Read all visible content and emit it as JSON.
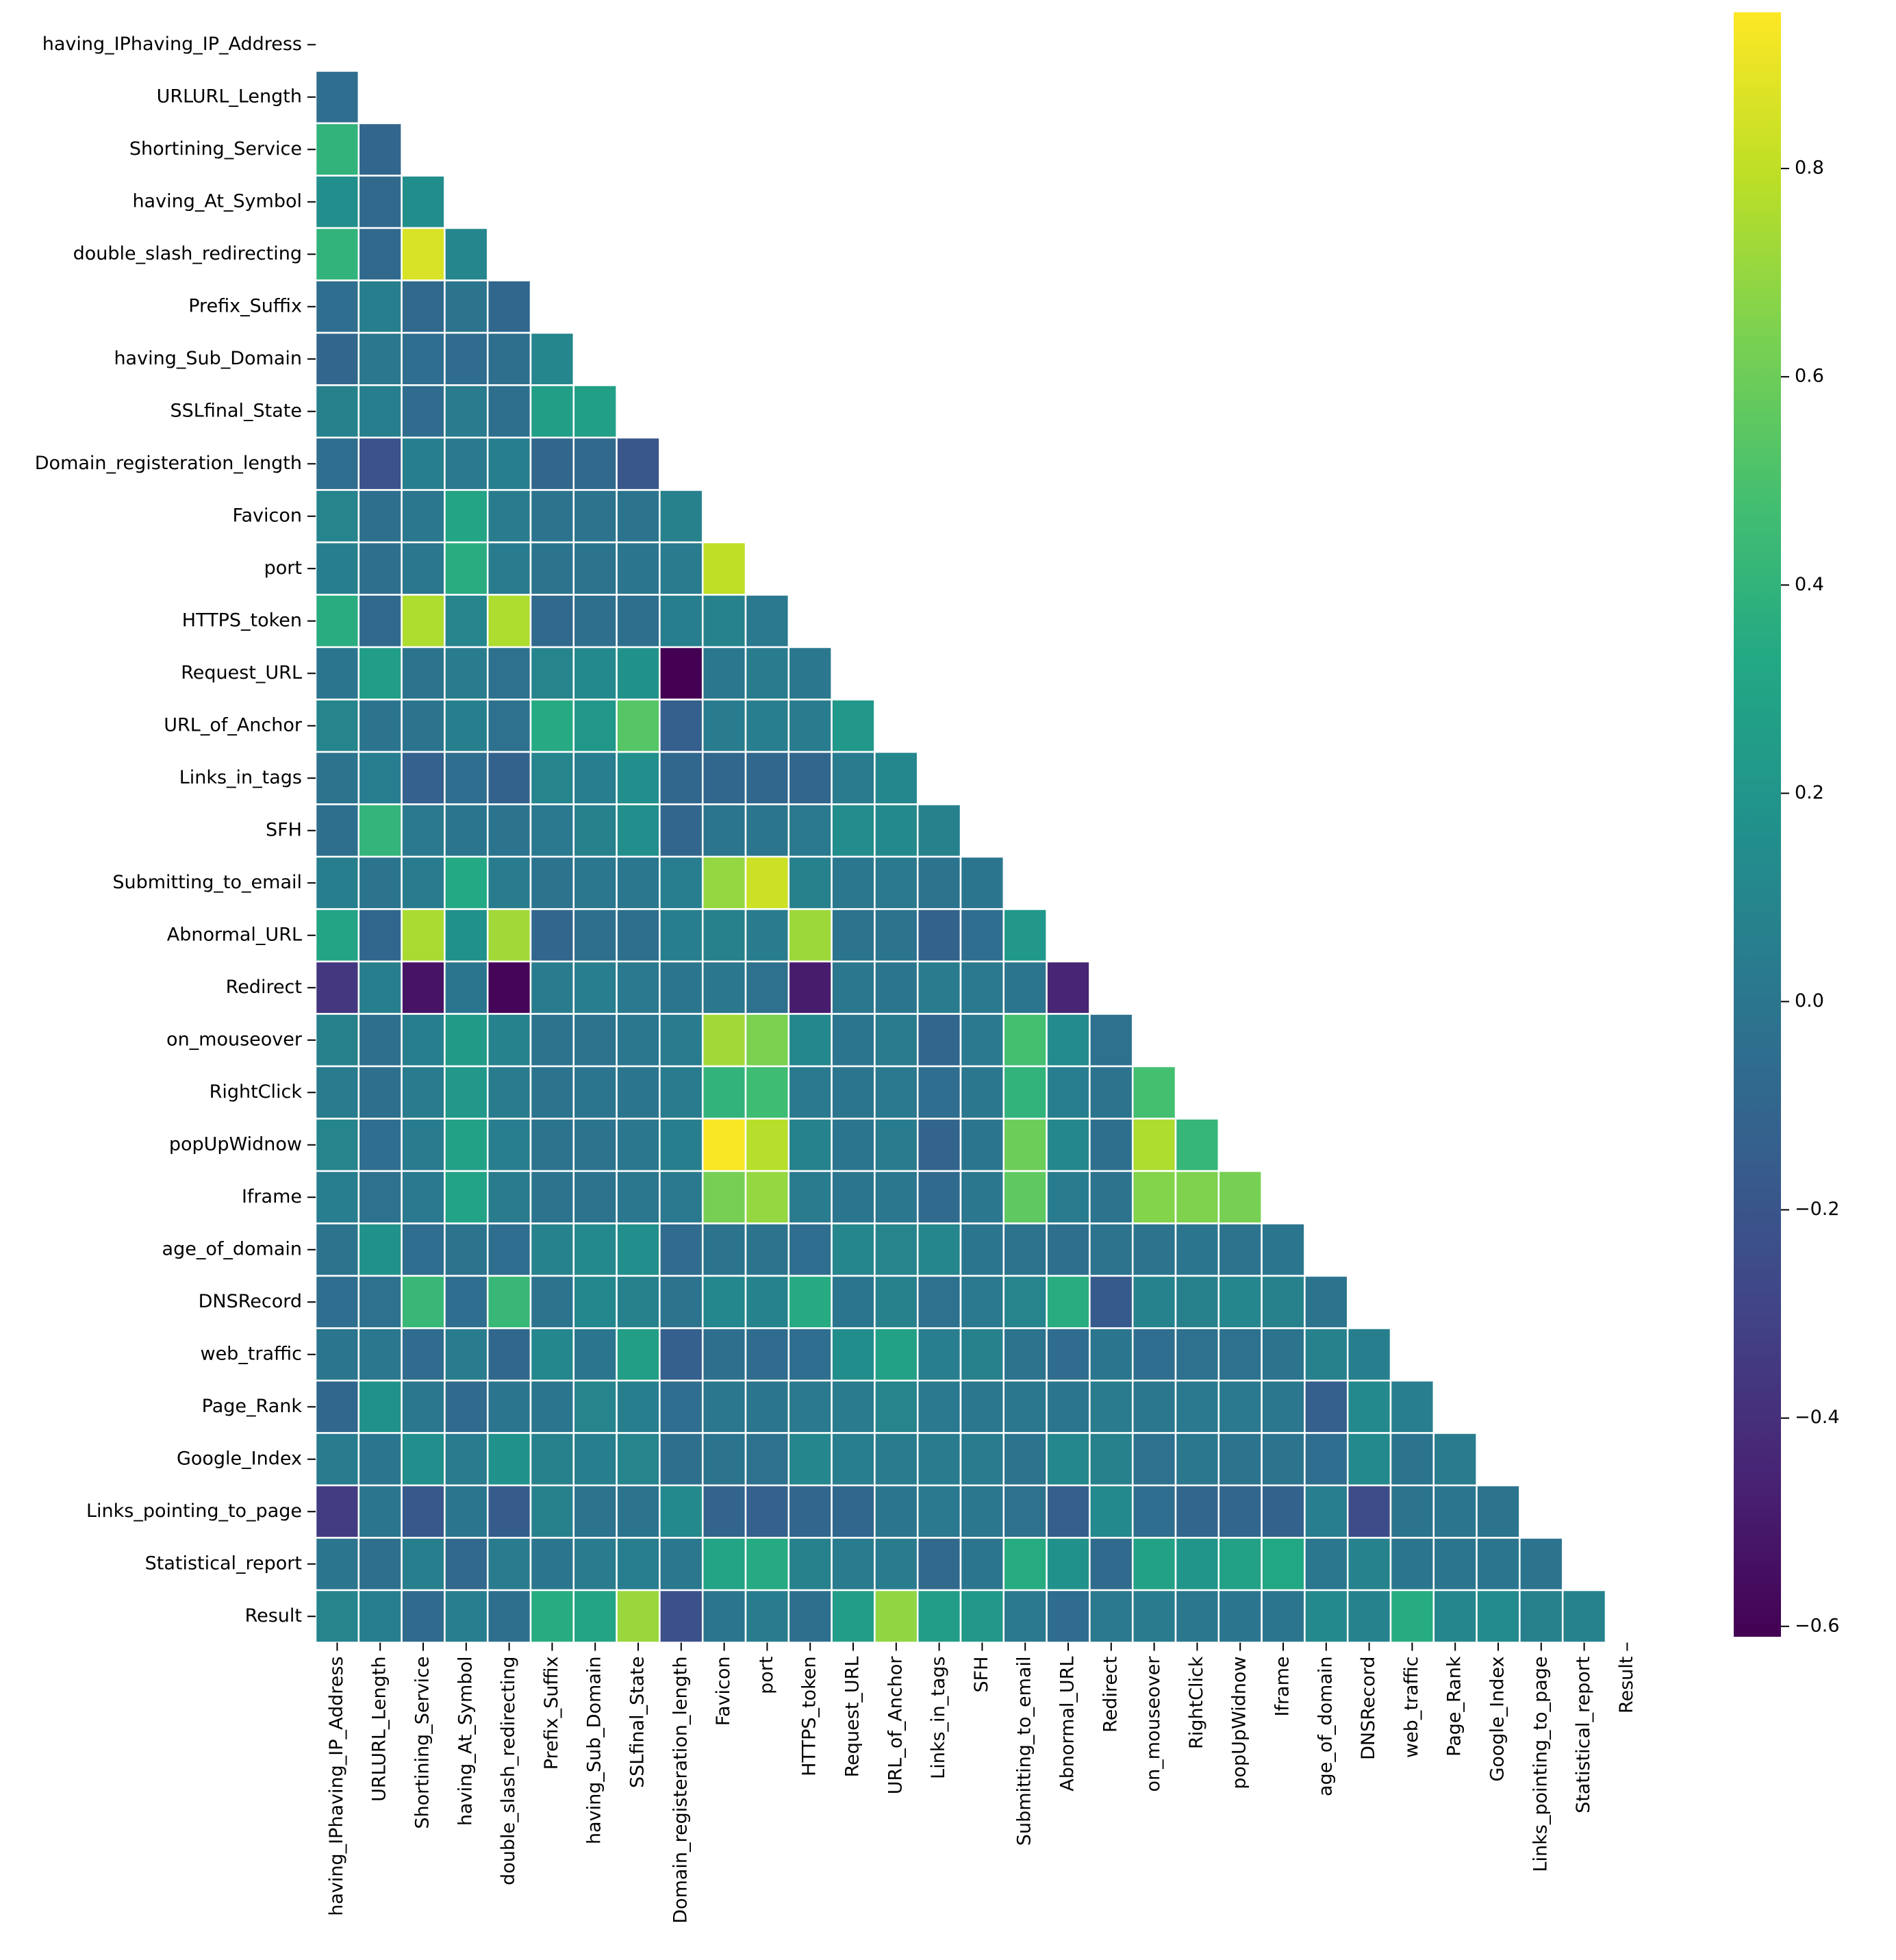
{
  "chart_data": {
    "type": "heatmap",
    "title": "",
    "xlabel": "",
    "ylabel": "",
    "mask": "upper-triangle-including-diagonal",
    "colormap": "viridis",
    "vmin": -0.61,
    "vmax": 0.95,
    "colorbar": {
      "position": "right",
      "ticks": [
        -0.6,
        -0.4,
        -0.2,
        0.0,
        0.2,
        0.4,
        0.6,
        0.8
      ],
      "tick_labels": [
        "−0.6",
        "−0.4",
        "−0.2",
        "0.0",
        "0.2",
        "0.4",
        "0.6",
        "0.8"
      ]
    },
    "labels": [
      "having_IPhaving_IP_Address",
      "URLURL_Length",
      "Shortining_Service",
      "having_At_Symbol",
      "double_slash_redirecting",
      "Prefix_Suffix",
      "having_Sub_Domain",
      "SSLfinal_State",
      "Domain_registeration_length",
      "Favicon",
      "port",
      "HTTPS_token",
      "Request_URL",
      "URL_of_Anchor",
      "Links_in_tags",
      "SFH",
      "Submitting_to_email",
      "Abnormal_URL",
      "Redirect",
      "on_mouseover",
      "RightClick",
      "popUpWidnow",
      "Iframe",
      "age_of_domain",
      "DNSRecord",
      "web_traffic",
      "Page_Rank",
      "Google_Index",
      "Links_pointing_to_page",
      "Statistical_report",
      "Result"
    ],
    "lower_triangle": [
      [],
      [
        -0.05
      ],
      [
        0.4,
        -0.1
      ],
      [
        0.16,
        -0.08,
        0.15
      ],
      [
        0.4,
        -0.08,
        0.86,
        0.1
      ],
      [
        -0.05,
        0.06,
        -0.08,
        -0.01,
        -0.09
      ],
      [
        -0.1,
        0.01,
        -0.05,
        -0.06,
        -0.04,
        0.1
      ],
      [
        0.07,
        0.06,
        -0.06,
        0.03,
        -0.04,
        0.26,
        0.27
      ],
      [
        -0.05,
        -0.22,
        0.06,
        0.02,
        0.06,
        -0.1,
        -0.08,
        -0.19
      ],
      [
        0.09,
        -0.04,
        0.01,
        0.3,
        0.04,
        -0.01,
        -0.01,
        -0.01,
        0.07
      ],
      [
        0.06,
        -0.04,
        0.01,
        0.36,
        0.04,
        -0.01,
        -0.01,
        0.0,
        0.03,
        0.8
      ],
      [
        0.36,
        -0.08,
        0.76,
        0.09,
        0.76,
        -0.08,
        -0.04,
        -0.04,
        0.06,
        0.08,
        0.02
      ],
      [
        0.0,
        0.25,
        -0.02,
        0.04,
        -0.03,
        0.09,
        0.12,
        0.18,
        -0.61,
        0.01,
        0.04,
        0.01
      ],
      [
        0.09,
        -0.01,
        -0.01,
        0.06,
        -0.03,
        0.34,
        0.21,
        0.53,
        -0.14,
        0.04,
        0.05,
        0.03,
        0.22
      ],
      [
        -0.02,
        0.05,
        -0.13,
        -0.05,
        -0.12,
        0.09,
        0.05,
        0.16,
        -0.09,
        -0.09,
        -0.09,
        -0.1,
        0.04,
        0.11
      ],
      [
        -0.04,
        0.41,
        0.02,
        0.0,
        -0.01,
        0.02,
        0.07,
        0.16,
        -0.1,
        0.0,
        0.0,
        0.02,
        0.14,
        0.12,
        0.07
      ],
      [
        0.06,
        -0.01,
        0.03,
        0.33,
        0.04,
        -0.02,
        0.01,
        0.01,
        0.05,
        0.7,
        0.83,
        0.07,
        0.01,
        0.02,
        -0.02,
        0.0
      ],
      [
        0.3,
        -0.09,
        0.75,
        0.17,
        0.73,
        -0.1,
        -0.04,
        -0.04,
        0.06,
        0.07,
        0.04,
        0.72,
        -0.02,
        -0.02,
        -0.12,
        -0.05,
        0.22
      ],
      [
        -0.36,
        0.06,
        -0.53,
        0.0,
        -0.59,
        0.04,
        0.05,
        0.02,
        0.0,
        0.01,
        -0.03,
        -0.49,
        0.01,
        0.0,
        0.04,
        0.02,
        0.0,
        -0.45
      ],
      [
        0.07,
        -0.04,
        0.06,
        0.24,
        0.08,
        -0.01,
        -0.01,
        0.01,
        0.03,
        0.73,
        0.64,
        0.11,
        0.0,
        0.04,
        -0.1,
        0.02,
        0.48,
        0.13,
        -0.03
      ],
      [
        0.03,
        -0.04,
        0.03,
        0.22,
        0.03,
        -0.01,
        0.0,
        0.0,
        0.03,
        0.4,
        0.46,
        0.02,
        0.0,
        0.02,
        -0.05,
        0.01,
        0.4,
        0.05,
        -0.01,
        0.48
      ],
      [
        0.09,
        -0.05,
        0.03,
        0.28,
        0.05,
        -0.02,
        -0.02,
        0.01,
        0.06,
        0.94,
        0.78,
        0.08,
        0.0,
        0.04,
        -0.11,
        0.0,
        0.6,
        0.11,
        -0.04,
        0.76,
        0.42
      ],
      [
        0.05,
        -0.03,
        0.02,
        0.29,
        0.03,
        -0.01,
        -0.01,
        0.01,
        0.02,
        0.63,
        0.7,
        0.03,
        0.0,
        0.01,
        -0.07,
        0.01,
        0.56,
        0.04,
        -0.02,
        0.66,
        0.65,
        0.63
      ],
      [
        -0.01,
        0.18,
        -0.05,
        -0.02,
        -0.05,
        0.08,
        0.12,
        0.16,
        -0.06,
        -0.01,
        -0.01,
        -0.05,
        0.1,
        0.09,
        0.1,
        0.0,
        -0.01,
        -0.04,
        -0.01,
        -0.01,
        0.0,
        -0.01,
        0.0
      ],
      [
        -0.05,
        -0.03,
        0.43,
        -0.05,
        0.43,
        -0.02,
        0.11,
        0.07,
        -0.02,
        0.11,
        0.08,
        0.34,
        0.0,
        0.07,
        -0.03,
        0.02,
        0.09,
        0.36,
        -0.17,
        0.08,
        0.07,
        0.1,
        0.07,
        -0.02
      ],
      [
        0.0,
        0.01,
        -0.06,
        0.04,
        -0.09,
        0.11,
        0.0,
        0.26,
        -0.14,
        -0.04,
        -0.06,
        -0.05,
        0.15,
        0.28,
        0.05,
        0.07,
        -0.02,
        -0.06,
        0.0,
        -0.05,
        -0.03,
        -0.03,
        -0.02,
        0.07,
        0.06
      ],
      [
        -0.09,
        0.17,
        0.01,
        -0.07,
        0.0,
        0.0,
        0.09,
        0.06,
        -0.05,
        0.01,
        0.0,
        0.02,
        0.04,
        0.09,
        0.02,
        0.01,
        0.01,
        0.0,
        0.04,
        0.01,
        0.02,
        0.02,
        0.01,
        -0.14,
        0.12,
        0.05
      ],
      [
        0.03,
        0.0,
        0.16,
        0.03,
        0.17,
        0.07,
        0.06,
        0.09,
        -0.04,
        -0.01,
        -0.03,
        0.1,
        0.05,
        0.04,
        0.04,
        0.03,
        -0.02,
        0.11,
        0.07,
        -0.03,
        0.01,
        -0.02,
        -0.01,
        -0.05,
        0.12,
        -0.01,
        0.04
      ],
      [
        -0.34,
        0.0,
        -0.18,
        0.0,
        -0.16,
        0.07,
        -0.02,
        -0.01,
        0.12,
        -0.11,
        -0.13,
        -0.1,
        -0.09,
        0.0,
        0.02,
        0.01,
        -0.03,
        -0.15,
        0.12,
        -0.05,
        -0.1,
        -0.1,
        -0.12,
        0.05,
        -0.25,
        -0.01,
        0.0,
        -0.02
      ],
      [
        0.0,
        -0.04,
        0.06,
        -0.08,
        0.04,
        0.0,
        0.04,
        0.05,
        0.01,
        0.3,
        0.34,
        0.07,
        0.03,
        0.04,
        -0.08,
        0.0,
        0.35,
        0.18,
        -0.07,
        0.28,
        0.2,
        0.28,
        0.32,
        0.01,
        0.08,
        0.0,
        0.0,
        0.0,
        -0.02
      ],
      [
        0.09,
        0.06,
        -0.07,
        0.05,
        -0.04,
        0.35,
        0.3,
        0.71,
        -0.23,
        0.0,
        0.04,
        -0.04,
        0.25,
        0.69,
        0.25,
        0.22,
        0.02,
        -0.06,
        0.02,
        0.04,
        0.01,
        0.0,
        0.0,
        0.12,
        0.08,
        0.35,
        0.1,
        0.13,
        0.07,
        0.08
      ]
    ]
  }
}
